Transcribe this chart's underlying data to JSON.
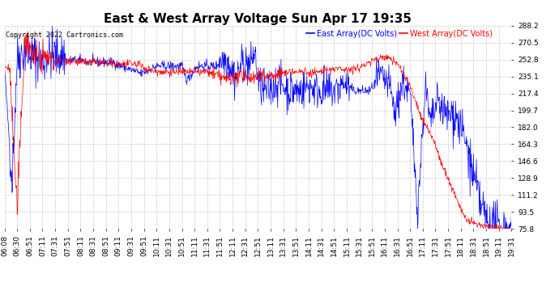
{
  "title": "East & West Array Voltage Sun Apr 17 19:35",
  "copyright_text": "Copyright 2022 Cartronics.com",
  "legend_east": "East Array(DC Volts)",
  "legend_west": "West Array(DC Volts)",
  "east_color": "blue",
  "west_color": "red",
  "ylim_min": 75.8,
  "ylim_max": 288.2,
  "yticks": [
    75.8,
    93.5,
    111.2,
    128.9,
    146.6,
    164.3,
    182.0,
    199.7,
    217.4,
    235.1,
    252.8,
    270.5,
    288.2
  ],
  "background_color": "#ffffff",
  "plot_bg_color": "#ffffff",
  "grid_color": "#bbbbbb",
  "x_labels": [
    "06:08",
    "06:30",
    "06:51",
    "07:11",
    "07:31",
    "07:51",
    "08:11",
    "08:31",
    "08:51",
    "09:11",
    "09:31",
    "09:51",
    "10:11",
    "10:31",
    "10:51",
    "11:11",
    "11:31",
    "11:51",
    "12:11",
    "12:31",
    "12:51",
    "13:11",
    "13:31",
    "13:51",
    "14:11",
    "14:31",
    "14:51",
    "15:11",
    "15:31",
    "15:51",
    "16:11",
    "16:31",
    "16:51",
    "17:11",
    "17:31",
    "17:51",
    "18:11",
    "18:31",
    "18:51",
    "19:11",
    "19:31"
  ],
  "title_fontsize": 11,
  "label_fontsize": 7,
  "tick_fontsize": 6.5,
  "copyright_fontsize": 6,
  "fig_width": 6.9,
  "fig_height": 3.75,
  "dpi": 100
}
